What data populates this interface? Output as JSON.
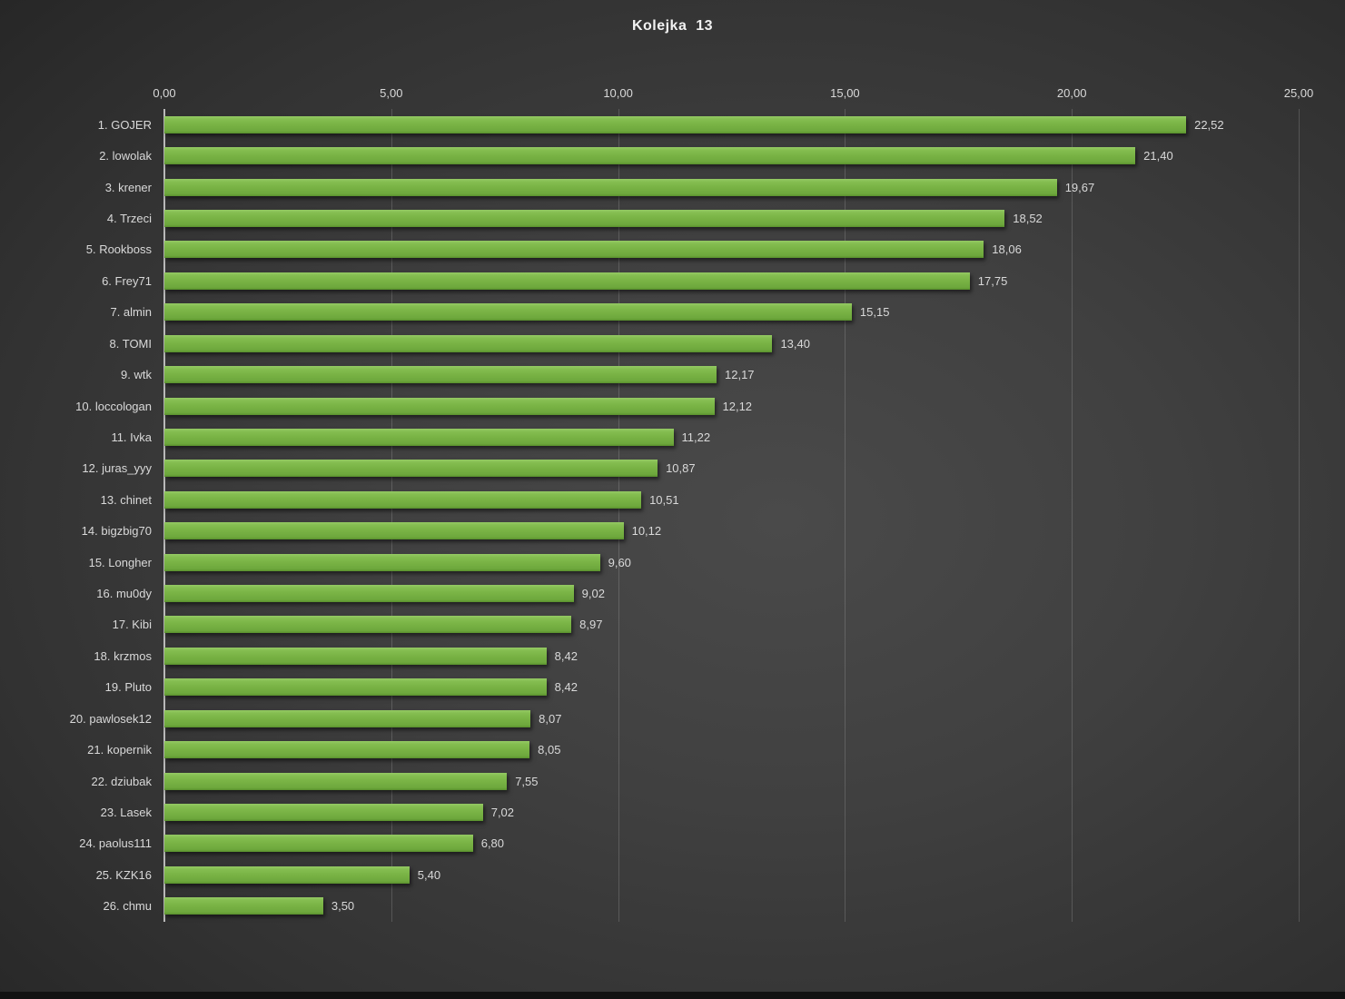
{
  "title": "Kolejka  13",
  "colors": {
    "bar_green": "#77b143",
    "label_gray": "#d9d9d9",
    "axis_gray": "#b9b9b9",
    "background_dark": "#262626",
    "background_light": "#4a4a4a"
  },
  "chart_data": {
    "type": "bar",
    "orientation": "horizontal",
    "title": "Kolejka  13",
    "categories": [
      "1. GOJER",
      "2. lowolak",
      "3. krener",
      "4. Trzeci",
      "5. Rookboss",
      "6. Frey71",
      "7. almin",
      "8. TOMI",
      "9. wtk",
      "10. loccologan",
      "11. Ivka",
      "12. juras_yyy",
      "13. chinet",
      "14. bigzbig70",
      "15. Longher",
      "16. mu0dy",
      "17. Kibi",
      "18. krzmos",
      "19. Pluto",
      "20. pawlosek12",
      "21. kopernik",
      "22. dziubak",
      "23. Lasek",
      "24. paolus111",
      "25. KZK16",
      "26. chmu"
    ],
    "values": [
      22.52,
      21.4,
      19.67,
      18.52,
      18.06,
      17.75,
      15.15,
      13.4,
      12.17,
      12.12,
      11.22,
      10.87,
      10.51,
      10.12,
      9.6,
      9.02,
      8.97,
      8.42,
      8.42,
      8.07,
      8.05,
      7.55,
      7.02,
      6.8,
      5.4,
      3.5
    ],
    "value_labels": [
      "22,52",
      "21,40",
      "19,67",
      "18,52",
      "18,06",
      "17,75",
      "15,15",
      "13,40",
      "12,17",
      "12,12",
      "11,22",
      "10,87",
      "10,51",
      "10,12",
      "9,60",
      "9,02",
      "8,97",
      "8,42",
      "8,42",
      "8,07",
      "8,05",
      "7,55",
      "7,02",
      "6,80",
      "5,40",
      "3,50"
    ],
    "x_ticks": [
      "0,00",
      "5,00",
      "10,00",
      "15,00",
      "20,00",
      "25,00"
    ],
    "xlim": [
      0,
      25
    ],
    "grid": true,
    "legend": false,
    "xlabel": "",
    "ylabel": ""
  }
}
